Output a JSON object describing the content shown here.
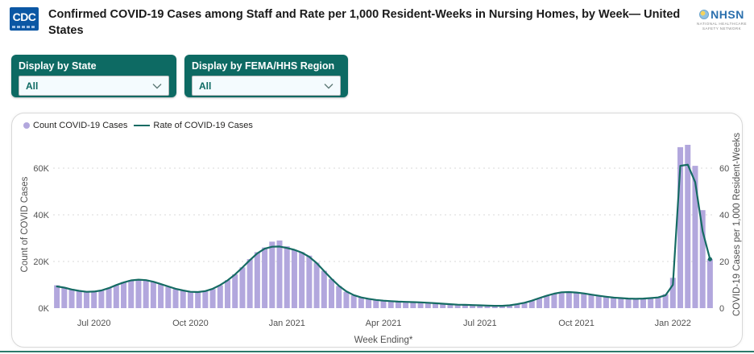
{
  "header": {
    "cdc_logo_text": "CDC",
    "title": "Confirmed COVID-19 Cases among Staff and Rate per 1,000 Resident-Weeks in Nursing Homes, by Week— United States",
    "nhsn": {
      "name": "NHSN",
      "subtitle": "NATIONAL HEALTHCARE SAFETY NETWORK"
    }
  },
  "filters": [
    {
      "label": "Display by State",
      "value": "All"
    },
    {
      "label": "Display by FEMA/HHS Region",
      "value": "All"
    }
  ],
  "colors": {
    "bar_purple": "#b2a7dd",
    "line_teal": "#156b63",
    "panel_teal": "#0d6a63",
    "cdc_blue": "#0b57a4",
    "nhsn_blue": "#2a6fad",
    "footer_rule": "#2d7a6b",
    "gridline": "#d9d9d9",
    "axis_text": "#505050"
  },
  "chart_data": {
    "type": "bar",
    "subtype": "bar+line combo, weekly data from late May 2020 through early Feb 2022",
    "xlabel": "Week Ending*",
    "x_tick_labels": [
      "Jul 2020",
      "Oct 2020",
      "Jan 2021",
      "Apr 2021",
      "Jul 2021",
      "Oct 2021",
      "Jan 2022"
    ],
    "x_tick_bar_index": [
      5,
      18,
      31,
      44,
      57,
      70,
      83
    ],
    "left_axis": {
      "title": "Count of COVID Cases",
      "tick_labels": [
        "0K",
        "20K",
        "40K",
        "60K"
      ],
      "tick_values": [
        0,
        20,
        40,
        60
      ],
      "ylim": [
        0,
        72
      ]
    },
    "right_axis": {
      "title": "COVID-19 Cases per 1,000 Resident-Weeks",
      "tick_labels": [
        "0",
        "20",
        "40",
        "60"
      ],
      "tick_values": [
        0,
        20,
        40,
        60
      ],
      "ylim": [
        0,
        72
      ]
    },
    "grid": "dotted horizontal gridlines at 20/40/60",
    "legend_position": "top-left",
    "series": [
      {
        "name": "Count COVID-19 Cases",
        "type": "bar",
        "color": "#b2a7dd",
        "unit": "thousands of cases",
        "values": [
          9.8,
          9.0,
          8.2,
          7.3,
          7.0,
          7.0,
          7.6,
          8.6,
          9.8,
          11.2,
          12.0,
          12.4,
          12.0,
          11.2,
          10.2,
          9.2,
          8.2,
          7.4,
          6.9,
          6.8,
          7.2,
          8.2,
          9.8,
          12.0,
          14.5,
          17.5,
          21.0,
          24.0,
          26.0,
          28.5,
          29.0,
          26.5,
          25.0,
          24.0,
          22.5,
          19.5,
          16.0,
          12.5,
          9.5,
          7.0,
          5.5,
          4.5,
          4.0,
          3.5,
          3.2,
          3.0,
          2.8,
          2.7,
          2.6,
          2.5,
          2.3,
          2.1,
          1.9,
          1.7,
          1.5,
          1.4,
          1.3,
          1.2,
          1.1,
          1.0,
          1.0,
          1.2,
          1.6,
          2.3,
          3.2,
          4.3,
          5.4,
          6.3,
          6.9,
          7.0,
          6.7,
          6.2,
          5.7,
          5.2,
          4.8,
          4.5,
          4.2,
          4.1,
          4.0,
          4.1,
          4.3,
          4.6,
          6.0,
          13.0,
          69.0,
          70.0,
          61.0,
          42.0,
          21.0
        ]
      },
      {
        "name": "Rate of COVID-19 Cases",
        "type": "line",
        "color": "#156b63",
        "unit": "cases per 1,000 resident-weeks",
        "values": [
          9.3,
          8.8,
          8.0,
          7.4,
          7.0,
          7.1,
          7.6,
          8.6,
          9.9,
          11.0,
          11.9,
          12.2,
          12.0,
          11.3,
          10.3,
          9.3,
          8.3,
          7.6,
          7.0,
          6.9,
          7.3,
          8.3,
          9.9,
          11.9,
          14.4,
          17.4,
          20.6,
          23.5,
          25.5,
          26.3,
          26.4,
          25.8,
          25.0,
          23.8,
          22.0,
          19.3,
          15.9,
          12.6,
          9.6,
          7.2,
          5.6,
          4.6,
          4.0,
          3.5,
          3.2,
          3.0,
          2.8,
          2.7,
          2.6,
          2.5,
          2.3,
          2.1,
          1.9,
          1.7,
          1.5,
          1.4,
          1.3,
          1.2,
          1.1,
          1.0,
          1.0,
          1.2,
          1.7,
          2.3,
          3.2,
          4.3,
          5.3,
          6.2,
          6.8,
          6.9,
          6.7,
          6.3,
          5.8,
          5.3,
          4.9,
          4.5,
          4.3,
          4.1,
          4.0,
          4.1,
          4.3,
          4.6,
          5.5,
          10.0,
          61.0,
          61.5,
          54.0,
          33.0,
          21.0
        ]
      }
    ]
  }
}
